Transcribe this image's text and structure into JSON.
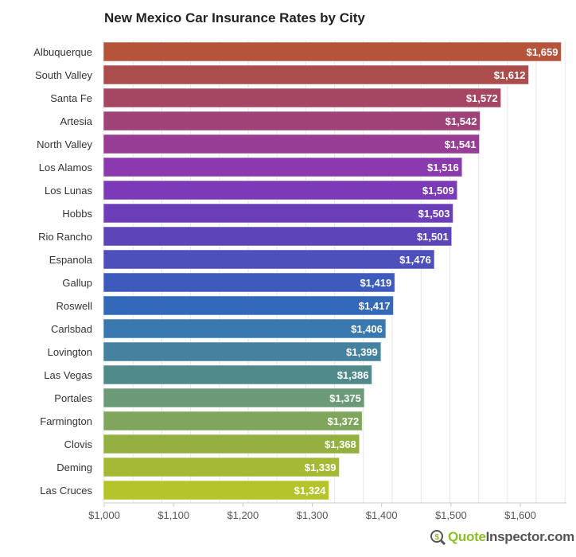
{
  "chart_data": {
    "type": "bar",
    "orientation": "horizontal",
    "title": "New Mexico Car Insurance Rates by City",
    "categories": [
      "Albuquerque",
      "South Valley",
      "Santa Fe",
      "Artesia",
      "North Valley",
      "Los Alamos",
      "Los Lunas",
      "Hobbs",
      "Rio Rancho",
      "Espanola",
      "Gallup",
      "Roswell",
      "Carlsbad",
      "Lovington",
      "Las Vegas",
      "Portales",
      "Farmington",
      "Clovis",
      "Deming",
      "Las Cruces"
    ],
    "values": [
      1659,
      1612,
      1572,
      1542,
      1541,
      1516,
      1509,
      1503,
      1501,
      1476,
      1419,
      1417,
      1406,
      1399,
      1386,
      1375,
      1372,
      1368,
      1339,
      1324
    ],
    "data_labels": [
      "$1,659",
      "$1,612",
      "$1,572",
      "$1,542",
      "$1,541",
      "$1,516",
      "$1,509",
      "$1,503",
      "$1,501",
      "$1,476",
      "$1,419",
      "$1,417",
      "$1,406",
      "$1,399",
      "$1,386",
      "$1,375",
      "$1,372",
      "$1,368",
      "$1,339",
      "$1,324"
    ],
    "colors": [
      "#b5533b",
      "#ac4d4d",
      "#a54662",
      "#9f4278",
      "#983d95",
      "#8a3aae",
      "#7c3ab8",
      "#6c3fb8",
      "#5c45b8",
      "#4d4fbb",
      "#3d5bbd",
      "#3469ba",
      "#3a78b0",
      "#44829f",
      "#518a8a",
      "#6a9a78",
      "#7fa65c",
      "#93b040",
      "#a6b934",
      "#b5c42a"
    ],
    "xlim": [
      1000,
      1665
    ],
    "x_ticks": [
      1000,
      1100,
      1200,
      1300,
      1400,
      1500,
      1600
    ],
    "x_tick_labels": [
      "$1,000",
      "$1,100",
      "$1,200",
      "$1,300",
      "$1,400",
      "$1,500",
      "$1,600"
    ],
    "xlabel": "",
    "ylabel": "",
    "grid": true
  },
  "logo": {
    "part1": "Quote",
    "part2": "Inspector.com"
  }
}
